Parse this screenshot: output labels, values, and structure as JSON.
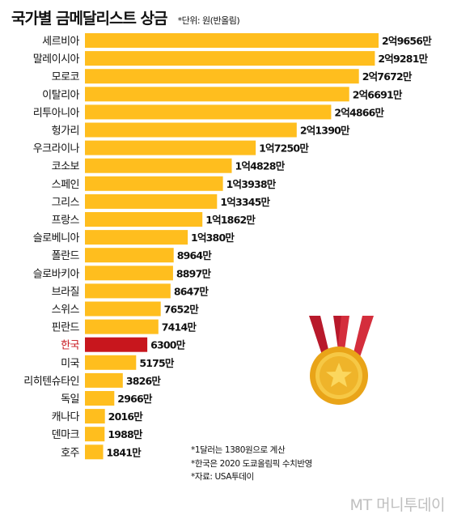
{
  "header": {
    "title": "국가별 금메달리스트 상금",
    "unit_note": "*단위: 원(반올림)"
  },
  "chart_data": {
    "type": "bar",
    "orientation": "horizontal",
    "title": "국가별 금메달리스트 상금",
    "unit": "원",
    "categories": [
      "세르비아",
      "말레이시아",
      "모로코",
      "이탈리아",
      "리투아니아",
      "헝가리",
      "우크라이나",
      "코소보",
      "스페인",
      "그리스",
      "프랑스",
      "슬로베니아",
      "폴란드",
      "슬로바키아",
      "브라질",
      "스위스",
      "핀란드",
      "한국",
      "미국",
      "리히텐슈타인",
      "독일",
      "캐나다",
      "덴마크",
      "호주"
    ],
    "values": [
      296560000,
      292810000,
      276720000,
      266910000,
      248660000,
      213900000,
      172500000,
      148280000,
      139380000,
      133450000,
      118620000,
      103800000,
      89640000,
      88970000,
      86470000,
      76520000,
      74140000,
      63000000,
      51750000,
      38260000,
      29660000,
      20160000,
      19880000,
      18410000
    ],
    "value_labels": [
      "2억9656만",
      "2억9281만",
      "2억7672만",
      "2억6691만",
      "2억4866만",
      "2억1390만",
      "1억7250만",
      "1억4828만",
      "1억3938만",
      "1억3345만",
      "1억1862만",
      "1억380만",
      "8964만",
      "8897만",
      "8647만",
      "7652만",
      "7414만",
      "6300만",
      "5175만",
      "3826만",
      "2966만",
      "2016만",
      "1988만",
      "1841만"
    ],
    "highlight_category": "한국",
    "colors": {
      "bar": "#FFBE1E",
      "highlight": "#C8161D",
      "highlight_label": "#C8161D"
    }
  },
  "notes": [
    "*1달러는 1380원으로 계산",
    "*한국은 2020 도쿄올림픽 수치반영",
    "*자료: USA투데이"
  ],
  "watermark": "MT 머니투데이",
  "icons": {
    "medal": "gold-medal-icon"
  }
}
